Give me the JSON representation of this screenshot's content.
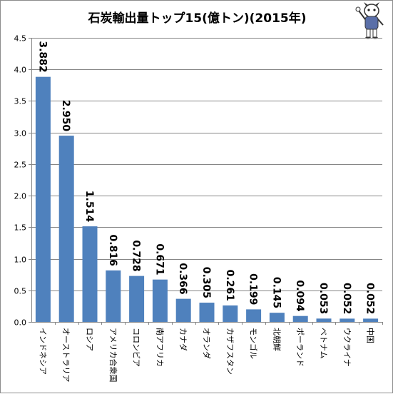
{
  "chart_data": {
    "type": "bar",
    "title": "石炭輸出量トップ15(億トン)(2015年)",
    "categories": [
      "インドネシア",
      "オーストラリア",
      "ロシア",
      "アメリカ合衆国",
      "コロンビア",
      "南アフリカ",
      "カナダ",
      "オランダ",
      "カザフスタン",
      "モンゴル",
      "北朝鮮",
      "ポーランド",
      "ベトナム",
      "ウクライナ",
      "中国"
    ],
    "values": [
      3.882,
      2.95,
      1.514,
      0.816,
      0.728,
      0.671,
      0.366,
      0.305,
      0.261,
      0.199,
      0.145,
      0.094,
      0.053,
      0.052,
      0.052
    ],
    "value_labels": [
      "3.882",
      "2.950",
      "1.514",
      "0.816",
      "0.728",
      "0.671",
      "0.366",
      "0.305",
      "0.261",
      "0.199",
      "0.145",
      "0.094",
      "0.053",
      "0.052",
      "0.052"
    ],
    "y_ticks": [
      "0.0",
      "0.5",
      "1.0",
      "1.5",
      "2.0",
      "2.5",
      "3.0",
      "3.5",
      "4.0",
      "4.5"
    ],
    "ylim": [
      0,
      4.5
    ],
    "grid": true,
    "bar_color": "#4f81bd",
    "grid_color": "#868686"
  },
  "decoration": {
    "mascot_icon": "mascot-icon"
  }
}
